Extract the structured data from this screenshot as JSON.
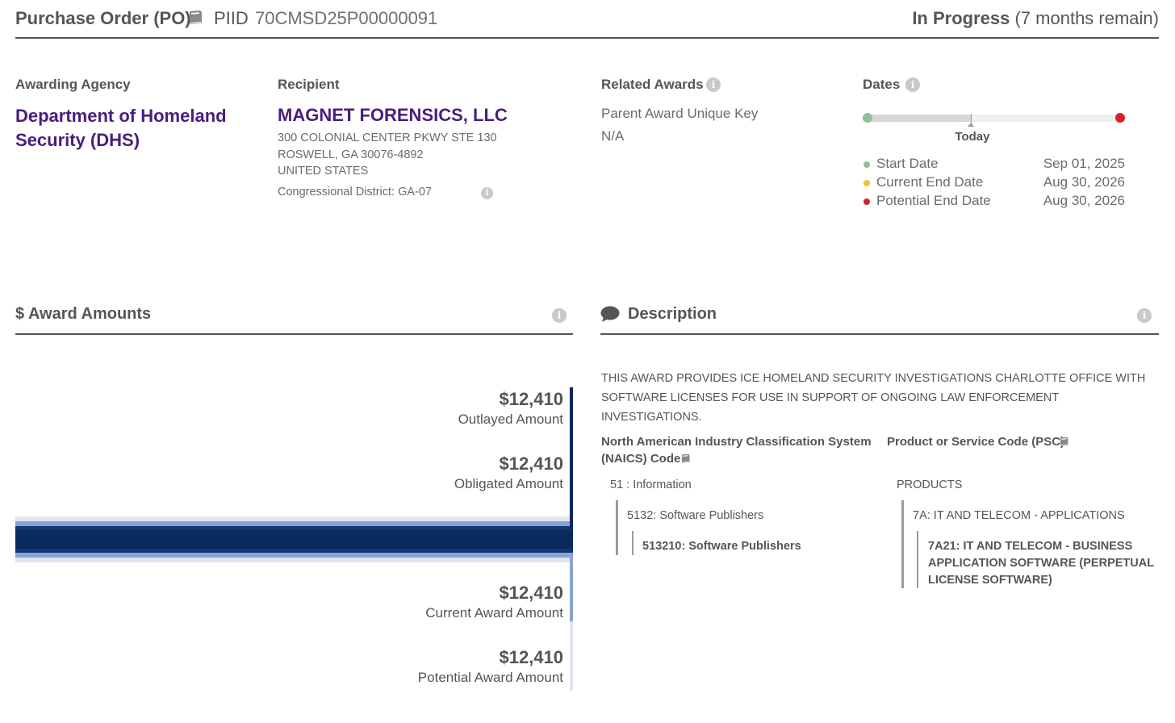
{
  "header": {
    "award_type": "Purchase Order (PO)",
    "book_icon": "book-icon",
    "piid_label": "PIID",
    "piid": "70CMSD25P00000091",
    "status": "In Progress",
    "status_detail": "(7 months remain)"
  },
  "agency": {
    "label": "Awarding Agency",
    "name": "Department of Homeland Security (DHS)"
  },
  "recipient": {
    "label": "Recipient",
    "name": "MAGNET FORENSICS, LLC",
    "address_line1": "300 COLONIAL CENTER PKWY STE 130",
    "address_line2": "ROSWELL, GA 30076-4892",
    "country": "UNITED STATES",
    "district": "Congressional District: GA-07"
  },
  "related": {
    "label": "Related Awards",
    "key_label": "Parent Award Unique Key",
    "key_value": "N/A"
  },
  "dates": {
    "label": "Dates",
    "today_label": "Today",
    "today_fraction": 0.42,
    "items": [
      {
        "label": "Start Date",
        "value": "Sep 01, 2025",
        "color": "#8fbf99"
      },
      {
        "label": "Current End Date",
        "value": "Aug 30, 2026",
        "color": "#f2c230"
      },
      {
        "label": "Potential End Date",
        "value": "Aug 30, 2026",
        "color": "#d6202a"
      }
    ]
  },
  "amounts": {
    "title": "$ Award Amounts",
    "items": [
      {
        "value": "$12,410",
        "label": "Outlayed Amount"
      },
      {
        "value": "$12,410",
        "label": "Obligated Amount"
      },
      {
        "value": "$12,410",
        "label": "Current Award Amount"
      },
      {
        "value": "$12,410",
        "label": "Potential Award Amount"
      }
    ],
    "colors": {
      "outlayed": "#0a2a5c",
      "obligated": "#0e3a73",
      "current": "#8aa4d1",
      "potential": "#dfe5f1"
    }
  },
  "description": {
    "title": "Description",
    "text": "THIS AWARD PROVIDES ICE HOMELAND SECURITY INVESTIGATIONS CHARLOTTE OFFICE WITH SOFTWARE LICENSES FOR USE IN SUPPORT OF ONGOING LAW ENFORCEMENT INVESTIGATIONS."
  },
  "naics": {
    "heading_line1": "North American Industry Classification System",
    "heading_line2": "(NAICS)  Code",
    "level1": "51 : Information",
    "level2": "5132: Software Publishers",
    "level3": "513210: Software Publishers"
  },
  "psc": {
    "heading": "Product or Service Code  (PSC)",
    "level1": "PRODUCTS",
    "level2": "7A: IT AND TELECOM - APPLICATIONS",
    "level3": "7A21: IT AND TELECOM - BUSINESS APPLICATION SOFTWARE (PERPETUAL LICENSE SOFTWARE)"
  }
}
